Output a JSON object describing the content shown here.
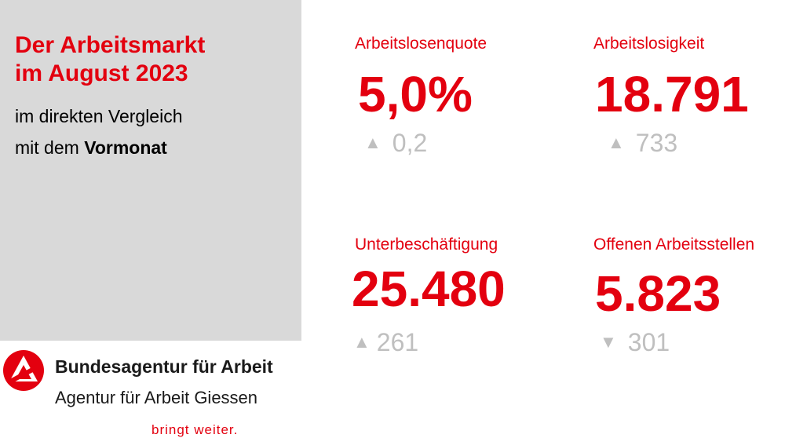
{
  "headline": {
    "line1": "Der Arbeitsmarkt",
    "line2": "im August 2023"
  },
  "subtitle": {
    "line1": "im direkten Vergleich",
    "line2_prefix": "mit dem ",
    "line2_bold": "Vormonat"
  },
  "kpis": [
    {
      "label": "Arbeitslosenquote",
      "value": "5,0%",
      "change": "0,2",
      "direction": "up",
      "arrow": "▲"
    },
    {
      "label": "Arbeitslosigkeit",
      "value": "18.791",
      "change": "733",
      "direction": "up",
      "arrow": "▲"
    },
    {
      "label": "Unterbeschäftigung",
      "value": "25.480",
      "change": "261",
      "direction": "up",
      "arrow": "▲"
    },
    {
      "label": "Offenen Arbeitsstellen",
      "value": "5.823",
      "change": "301",
      "direction": "down",
      "arrow": "▼"
    }
  ],
  "brand": {
    "title": "Bundesagentur für Arbeit",
    "subtitle": "Agentur für Arbeit Giessen",
    "slogan": "bringt weiter."
  },
  "colors": {
    "accent": "#e3000f",
    "muted": "#bfbfbf",
    "panel": "#d9d9d9"
  }
}
